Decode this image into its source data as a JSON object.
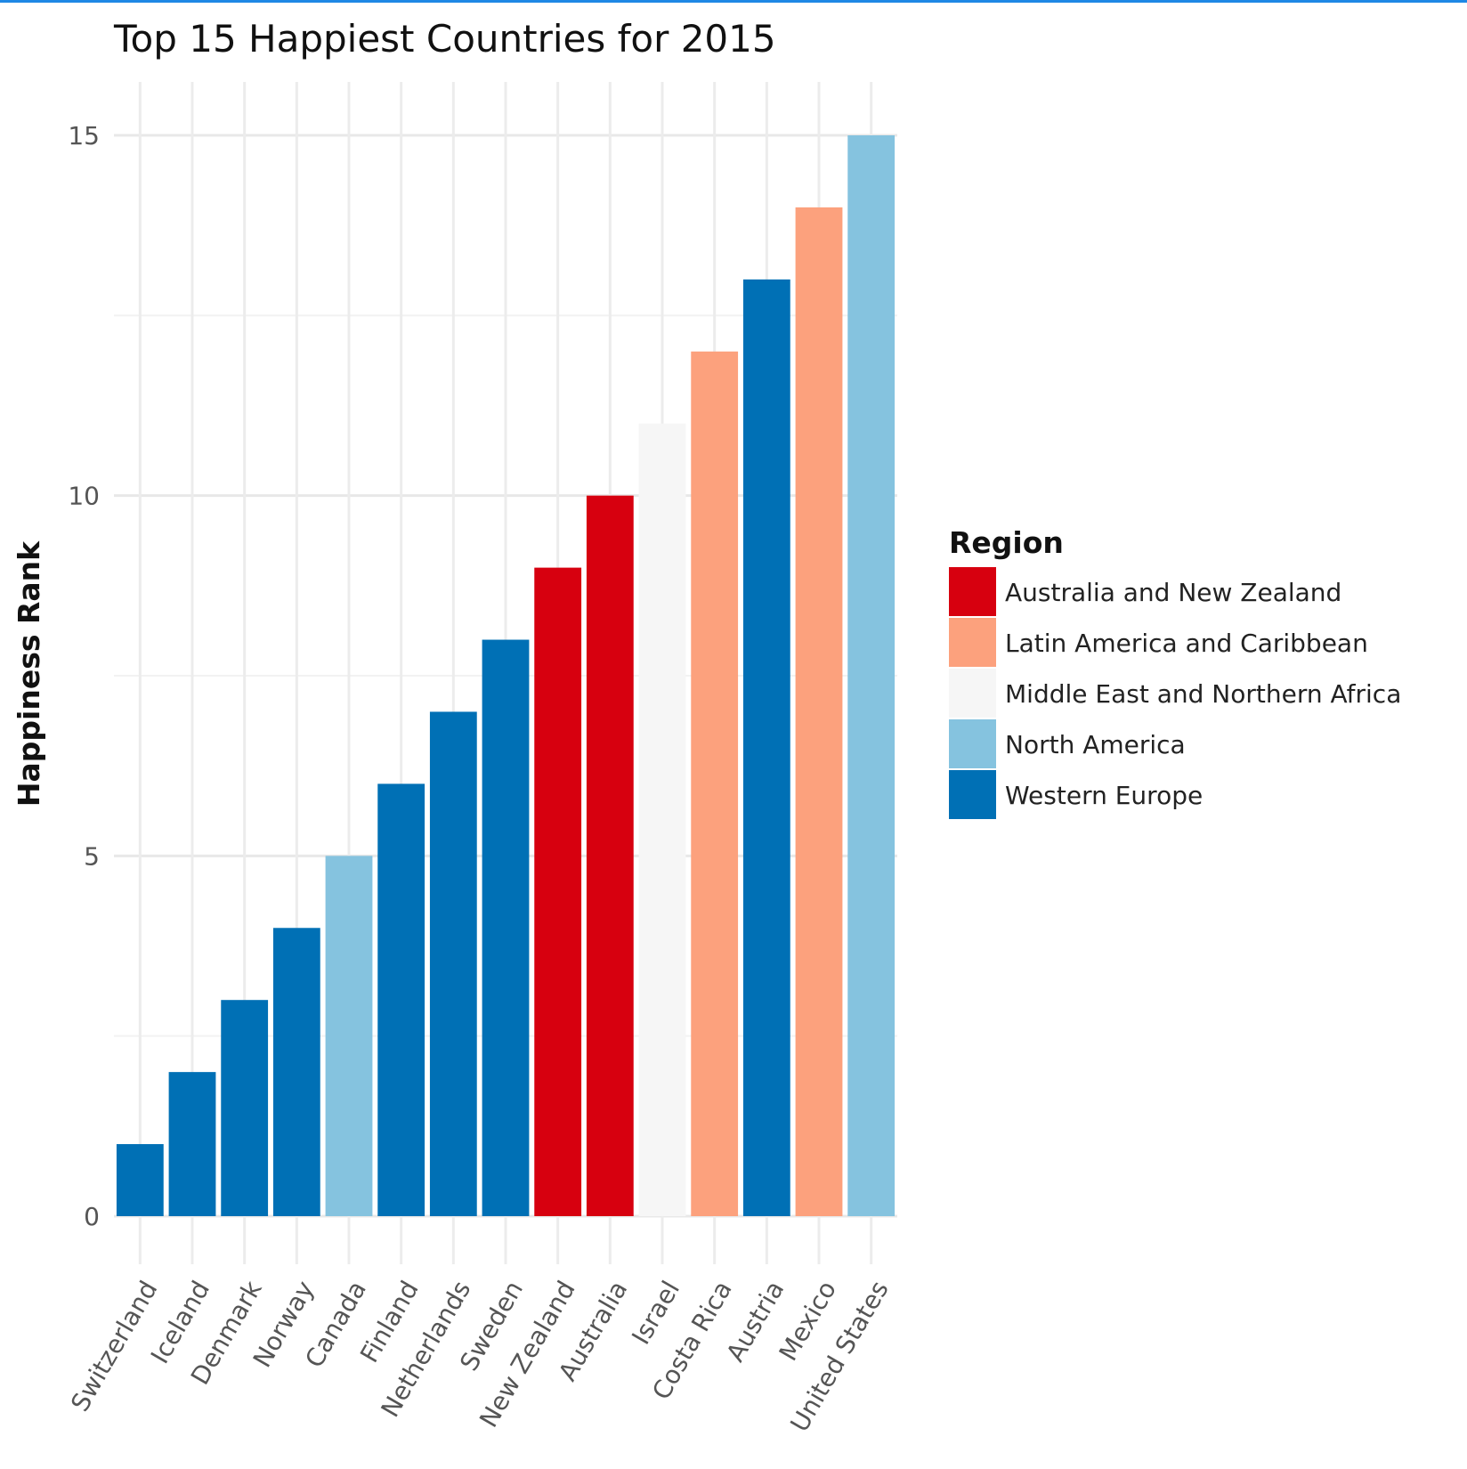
{
  "chart_data": {
    "type": "bar",
    "title": "Top 15 Happiest Countries for 2015",
    "xlabel": "",
    "ylabel": "Happiness Rank",
    "ylim": [
      0,
      15.8
    ],
    "yticks": [
      0,
      5,
      10,
      15
    ],
    "grid": true,
    "legend": {
      "title": "Region",
      "placement": "right",
      "entries": [
        {
          "name": "Australia and New Zealand",
          "color": "#d7000f"
        },
        {
          "name": "Latin America and Caribbean",
          "color": "#fca17d"
        },
        {
          "name": "Middle East and Northern Africa",
          "color": "#f6f6f6"
        },
        {
          "name": "North America",
          "color": "#85c3df"
        },
        {
          "name": "Western Europe",
          "color": "#0070b5"
        }
      ]
    },
    "categories": [
      "Switzerland",
      "Iceland",
      "Denmark",
      "Norway",
      "Canada",
      "Finland",
      "Netherlands",
      "Sweden",
      "New Zealand",
      "Australia",
      "Israel",
      "Costa Rica",
      "Austria",
      "Mexico",
      "United States"
    ],
    "values": [
      1,
      2,
      3,
      4,
      5,
      6,
      7,
      8,
      9,
      10,
      11,
      12,
      13,
      14,
      15
    ],
    "regions": [
      "Western Europe",
      "Western Europe",
      "Western Europe",
      "Western Europe",
      "North America",
      "Western Europe",
      "Western Europe",
      "Western Europe",
      "Australia and New Zealand",
      "Australia and New Zealand",
      "Middle East and Northern Africa",
      "Latin America and Caribbean",
      "Western Europe",
      "Latin America and Caribbean",
      "North America"
    ]
  }
}
